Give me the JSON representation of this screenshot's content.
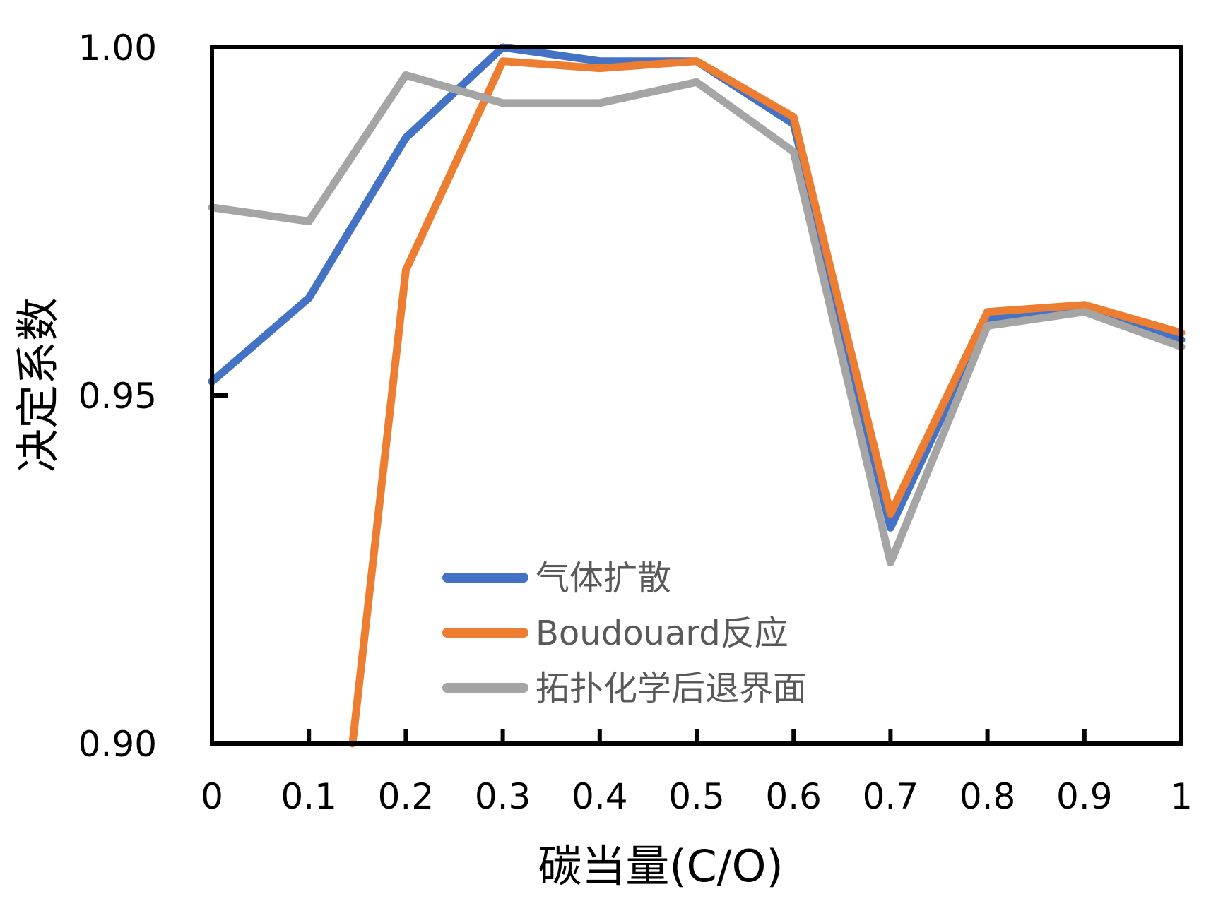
{
  "chart_data": {
    "type": "line",
    "title": "",
    "xlabel": "碳当量(C/O)",
    "ylabel": "决定系数",
    "xlim": [
      0,
      1
    ],
    "ylim": [
      0.9,
      1.0
    ],
    "x_ticks": [
      "0",
      "0.1",
      "0.2",
      "0.3",
      "0.4",
      "0.5",
      "0.6",
      "0.7",
      "0.8",
      "0.9",
      "1"
    ],
    "y_ticks": [
      "0.90",
      "0.95",
      "1.00"
    ],
    "legend_position": "lower-center",
    "grid": false,
    "series": [
      {
        "name": "气体扩散",
        "color": "#4472C4",
        "x": [
          0,
          0.1,
          0.2,
          0.3,
          0.4,
          0.5,
          0.6,
          0.7,
          0.8,
          0.9,
          1.0
        ],
        "y": [
          0.952,
          0.964,
          0.987,
          1.0,
          0.998,
          0.998,
          0.989,
          0.931,
          0.961,
          0.963,
          0.958
        ]
      },
      {
        "name": "Boudouard反应",
        "color": "#ED7D31",
        "x": [
          0.145,
          0.2,
          0.3,
          0.4,
          0.5,
          0.6,
          0.7,
          0.8,
          0.9,
          1.0
        ],
        "y": [
          0.9,
          0.968,
          0.998,
          0.997,
          0.998,
          0.99,
          0.933,
          0.962,
          0.963,
          0.959
        ]
      },
      {
        "name": "拓扑化学后退界面",
        "color": "#A5A5A5",
        "x": [
          0,
          0.1,
          0.2,
          0.3,
          0.4,
          0.5,
          0.6,
          0.7,
          0.8,
          0.9,
          1.0
        ],
        "y": [
          0.977,
          0.975,
          0.996,
          0.992,
          0.992,
          0.995,
          0.985,
          0.926,
          0.96,
          0.962,
          0.957
        ]
      }
    ]
  }
}
